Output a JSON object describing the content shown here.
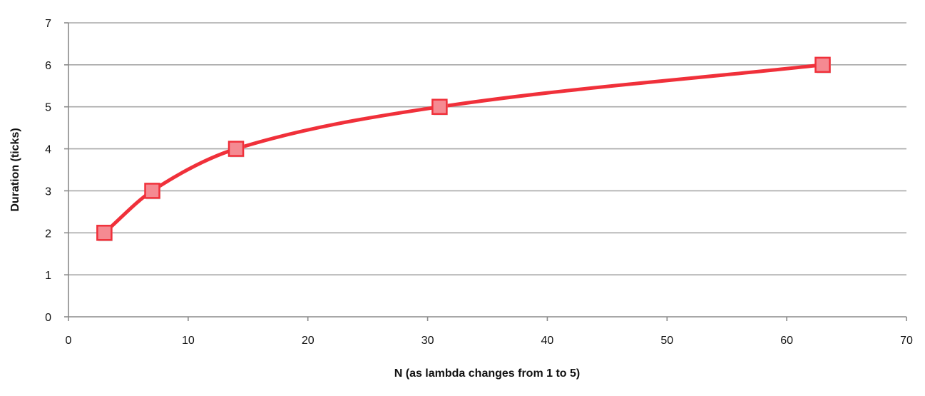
{
  "chart_data": {
    "type": "line",
    "title": "",
    "xlabel": "N (as lambda changes from 1 to 5)",
    "ylabel": "Duration (ticks)",
    "xlim": [
      0,
      70
    ],
    "ylim": [
      0,
      7
    ],
    "xticks": [
      0,
      10,
      20,
      30,
      40,
      50,
      60,
      70
    ],
    "yticks": [
      0,
      1,
      2,
      3,
      4,
      5,
      6,
      7
    ],
    "grid": "horizontal",
    "legend": "none",
    "smooth": true,
    "series": [
      {
        "color": "#f0303a",
        "marker": "square",
        "marker_color": "#f58a92",
        "x": [
          3,
          7,
          14,
          31,
          63
        ],
        "y": [
          2,
          3,
          4,
          5,
          6
        ]
      }
    ]
  }
}
